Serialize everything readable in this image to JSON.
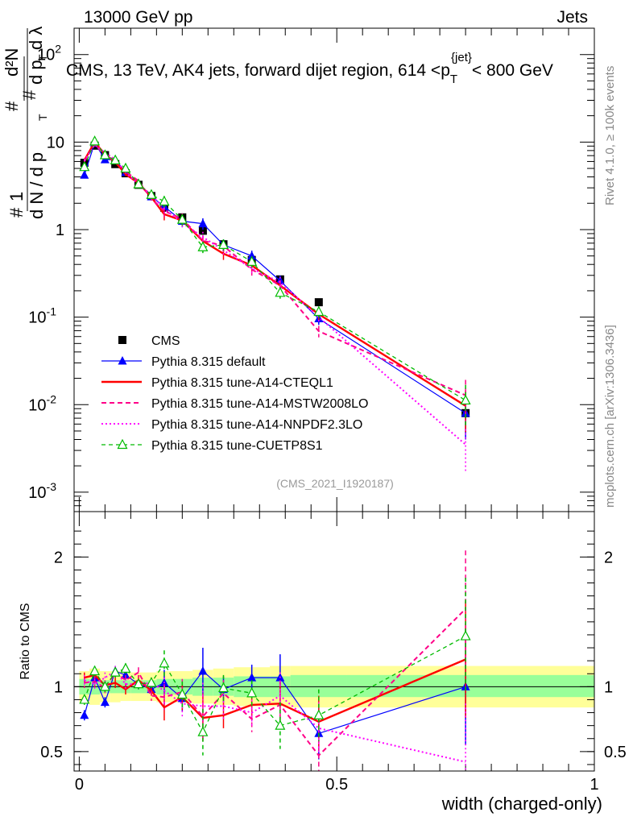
{
  "header": {
    "process": "13000 GeV pp",
    "category": "Jets"
  },
  "side": {
    "rivet": "Rivet 4.1.0, ≥ 100k events",
    "site": "mcplots.cern.ch [arXiv:1306.3436]"
  },
  "watermark": "(CMS_2021_I1920187)",
  "chart_data": [
    {
      "type": "line",
      "panel": "main",
      "title": "CMS, 13 TeV, AK4 jets, forward dijet region, 614 <p_T^{jet}< 800 GeV",
      "title_parts": {
        "prefix": "CMS, 13 TeV, AK4 jets, forward dijet region, 614 <p",
        "sub": "T",
        "sup": "{jet}",
        "suffix": "< 800 GeV"
      },
      "ylabel": "1/(dN/dp_T) d²N/(dp_T dλ)",
      "ylabel_parts": {
        "hash": "#",
        "one": "1",
        "dN": "d N / d p",
        "T": "T",
        "d2N": "d²N",
        "dp": "d p",
        "dl": "d λ"
      },
      "yscale": "log",
      "ylim": [
        0.0006,
        200
      ],
      "xlim": [
        -0.01,
        1.0
      ],
      "yticks": [
        {
          "v": 0.001,
          "base": "10",
          "exp": "-3"
        },
        {
          "v": 0.01,
          "base": "10",
          "exp": "-2"
        },
        {
          "v": 0.1,
          "base": "10",
          "exp": "-1"
        },
        {
          "v": 1,
          "base": "1",
          "exp": ""
        },
        {
          "v": 10,
          "base": "10",
          "exp": ""
        },
        {
          "v": 100,
          "base": "10",
          "exp": "2"
        }
      ],
      "x": [
        0.01,
        0.03,
        0.05,
        0.07,
        0.09,
        0.115,
        0.14,
        0.165,
        0.2,
        0.24,
        0.28,
        0.335,
        0.39,
        0.465,
        0.75
      ],
      "series": [
        {
          "name": "CMS",
          "key": "cms",
          "color": "#000000",
          "values": [
            5.8,
            9.1,
            7.1,
            5.6,
            4.4,
            3.25,
            2.42,
            1.78,
            1.38,
            0.97,
            0.68,
            0.45,
            0.27,
            0.148,
            0.008
          ]
        },
        {
          "name": "Pythia 8.315 default",
          "key": "def",
          "color": "#0000ff",
          "values": [
            4.2,
            9.8,
            6.3,
            6.3,
            4.5,
            3.3,
            2.38,
            1.84,
            1.25,
            1.17,
            0.67,
            0.5,
            0.26,
            0.096,
            0.008
          ]
        },
        {
          "name": "Pythia 8.315 tune-A14-CTEQL1",
          "key": "cteq",
          "color": "#ff0000",
          "values": [
            6.2,
            10.0,
            7.2,
            5.9,
            4.3,
            3.4,
            2.35,
            1.5,
            1.27,
            0.74,
            0.53,
            0.39,
            0.23,
            0.108,
            0.0097
          ]
        },
        {
          "name": "Pythia 8.315 tune-A14-MSTW2008LO",
          "key": "mstw",
          "color": "#ff0088",
          "values": [
            6.0,
            9.5,
            7.0,
            6.2,
            4.6,
            3.6,
            2.25,
            1.63,
            1.33,
            0.75,
            0.65,
            0.35,
            0.23,
            0.069,
            0.0128
          ]
        },
        {
          "name": "Pythia 8.315 tune-A14-NNPDF2.3LO",
          "key": "nnpdf",
          "color": "#ff00ff",
          "values": [
            6.1,
            9.3,
            7.6,
            6.3,
            4.5,
            3.3,
            2.5,
            1.72,
            1.2,
            0.82,
            0.58,
            0.36,
            0.25,
            0.1,
            0.0035
          ]
        },
        {
          "name": "Pythia 8.315 tune-CUETP8S1",
          "key": "cuet",
          "color": "#00bb00",
          "values": [
            5.2,
            10.2,
            7.1,
            6.2,
            5.0,
            3.3,
            2.5,
            2.1,
            1.3,
            0.63,
            0.67,
            0.43,
            0.19,
            0.115,
            0.0112
          ]
        }
      ]
    },
    {
      "type": "line",
      "panel": "ratio",
      "ylabel": "Ratio to CMS",
      "ylim": [
        0.35,
        2.35
      ],
      "xlim": [
        -0.01,
        1.0
      ],
      "xlabel": "width (charged-only)",
      "xticks": [
        {
          "v": 0,
          "label": "0"
        },
        {
          "v": 0.5,
          "label": "0.5"
        },
        {
          "v": 1,
          "label": "1"
        }
      ],
      "yticks": [
        {
          "v": 0.5,
          "label": "0.5"
        },
        {
          "v": 1,
          "label": "1"
        },
        {
          "v": 2,
          "label": "2"
        }
      ],
      "bands": {
        "edges": [
          0.0,
          0.02,
          0.04,
          0.06,
          0.08,
          0.1,
          0.13,
          0.15,
          0.18,
          0.22,
          0.26,
          0.3,
          0.37,
          0.41,
          0.52,
          1.0
        ],
        "green_lo": [
          0.94,
          0.94,
          0.95,
          0.95,
          0.95,
          0.95,
          0.95,
          0.94,
          0.94,
          0.93,
          0.93,
          0.92,
          0.92,
          0.92,
          0.92
        ],
        "green_hi": [
          1.06,
          1.06,
          1.05,
          1.05,
          1.05,
          1.05,
          1.05,
          1.06,
          1.06,
          1.07,
          1.07,
          1.08,
          1.08,
          1.09,
          1.09
        ],
        "yellow_lo": [
          0.88,
          0.86,
          0.88,
          0.88,
          0.89,
          0.89,
          0.89,
          0.88,
          0.88,
          0.87,
          0.86,
          0.85,
          0.85,
          0.84,
          0.84
        ],
        "yellow_hi": [
          1.12,
          1.14,
          1.12,
          1.12,
          1.11,
          1.11,
          1.11,
          1.12,
          1.12,
          1.13,
          1.14,
          1.15,
          1.16,
          1.16,
          1.16
        ]
      },
      "series": [
        {
          "name": "Pythia 8.315 default",
          "key": "def",
          "color": "#0000ff",
          "values": [
            0.78,
            1.07,
            0.88,
            1.12,
            1.09,
            1.02,
            0.98,
            1.03,
            0.91,
            1.12,
            0.98,
            1.07,
            1.07,
            0.64,
            1.0
          ]
        },
        {
          "name": "Pythia 8.315 tune-A14-CTEQL1",
          "key": "cteq",
          "color": "#ff0000",
          "values": [
            1.07,
            1.09,
            1.01,
            1.03,
            0.98,
            1.05,
            0.97,
            0.84,
            0.92,
            0.76,
            0.78,
            0.86,
            0.87,
            0.73,
            1.21
          ]
        },
        {
          "name": "Pythia 8.315 tune-A14-MSTW2008LO",
          "key": "mstw",
          "color": "#ff0088",
          "values": [
            1.03,
            1.04,
            0.99,
            1.11,
            1.05,
            1.11,
            0.93,
            0.92,
            0.96,
            0.77,
            0.95,
            0.75,
            0.86,
            0.47,
            1.6
          ]
        },
        {
          "name": "Pythia 8.315 tune-A14-NNPDF2.3LO",
          "key": "nnpdf",
          "color": "#ff00ff",
          "values": [
            1.05,
            1.02,
            1.07,
            1.12,
            1.02,
            1.02,
            1.03,
            0.97,
            0.87,
            0.85,
            0.85,
            0.8,
            0.93,
            0.68,
            0.42
          ]
        },
        {
          "name": "Pythia 8.315 tune-CUETP8S1",
          "key": "cuet",
          "color": "#00bb00",
          "values": [
            0.9,
            1.12,
            1.0,
            1.11,
            1.14,
            1.02,
            1.03,
            1.18,
            0.94,
            0.65,
            0.99,
            0.95,
            0.7,
            0.78,
            1.39
          ]
        }
      ]
    }
  ]
}
